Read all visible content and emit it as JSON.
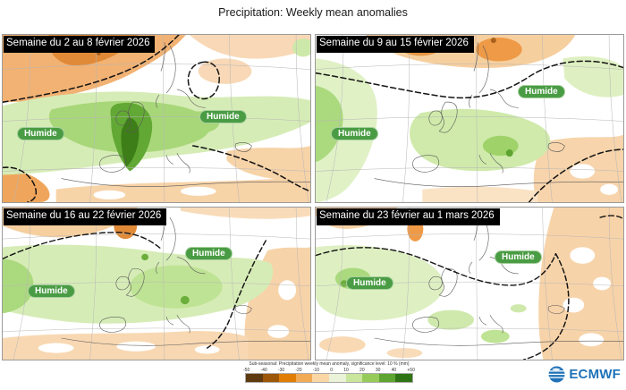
{
  "page": {
    "title": "Precipitation: Weekly mean anomalies"
  },
  "panels": [
    {
      "title": "Semaine du 2 au 8 février 2026",
      "labels": [
        "Humide",
        "Humide"
      ]
    },
    {
      "title": "Semaine du 9 au 15 février 2026",
      "labels": [
        "Humide",
        "Humide"
      ]
    },
    {
      "title": "Semaine du 16 au 22 février 2026",
      "labels": [
        "Humide",
        "Humide"
      ]
    },
    {
      "title": "Semaine du 23 février au 1 mars 2026",
      "labels": [
        "Humide",
        "Humide"
      ]
    }
  ],
  "legend": {
    "caption": "Sub-seasonal: Precipitation weekly mean anomaly, significance level: 10 % (mm)",
    "ticks": [
      "-50",
      "-40",
      "-30",
      "-20",
      "-10",
      "0",
      "10",
      "20",
      "30",
      "40",
      "+50"
    ],
    "colors": [
      "#5e3a10",
      "#9c5708",
      "#e07d05",
      "#f2ab55",
      "#f9d6a4",
      "#eaf3d8",
      "#c9e69c",
      "#97cb59",
      "#5da430",
      "#2f7414"
    ]
  },
  "branding": {
    "logo_text": "ECMWF",
    "logo_color": "#1f72b8"
  },
  "map_colors": {
    "wet_light": "#d6ecb6",
    "wet_medium": "#a8d779",
    "wet_strong": "#62a834",
    "wet_max": "#3e7e18",
    "dry_light": "#f7d3a9",
    "dry_medium": "#f2b273",
    "dry_strong": "#e08a38",
    "badge_green": "#4a9c44"
  }
}
